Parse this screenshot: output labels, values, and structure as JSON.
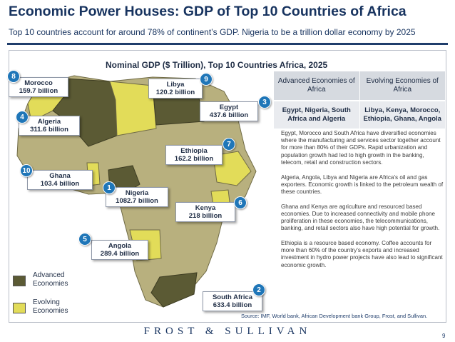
{
  "header": {
    "title": "Economic Power Houses: GDP of Top 10 Countries of Africa",
    "subtitle": "Top 10 countries account for around  78% of continent’s GDP. Nigeria to be a trillion dollar economy by 2025"
  },
  "map": {
    "heading": "Nominal GDP ($ Trillion), Top 10 Countries Africa, 2025",
    "countries": [
      {
        "rank": "8",
        "name": "Morocco",
        "value": "159.7 billion",
        "category": "evolving"
      },
      {
        "rank": "9",
        "name": "Libya",
        "value": "120.2 billion",
        "category": "evolving"
      },
      {
        "rank": "3",
        "name": "Egypt",
        "value": "437.6 billion",
        "category": "advanced"
      },
      {
        "rank": "4",
        "name": "Algeria",
        "value": "311.6 billion",
        "category": "advanced"
      },
      {
        "rank": "7",
        "name": "Ethiopia",
        "value": "162.2 billion",
        "category": "evolving"
      },
      {
        "rank": "10",
        "name": "Ghana",
        "value": "103.4 billion",
        "category": "evolving"
      },
      {
        "rank": "1",
        "name": "Nigeria",
        "value": "1082.7 billion",
        "category": "advanced"
      },
      {
        "rank": "6",
        "name": "Kenya",
        "value": "218  billion",
        "category": "evolving"
      },
      {
        "rank": "5",
        "name": "Angola",
        "value": "289.4 billion",
        "category": "evolving"
      },
      {
        "rank": "2",
        "name": "South Africa",
        "value": "633.4 billion",
        "category": "advanced"
      }
    ],
    "colors": {
      "advanced": "#5b5a34",
      "evolving": "#e2dc59",
      "land": "#b8b07e",
      "badge": "#1f76b8"
    }
  },
  "legend": {
    "advanced": "Advanced Economies",
    "evolving": "Evolving Economies"
  },
  "table": {
    "headers": [
      "Advanced Economies of Africa",
      "Evolving Economies of Africa"
    ],
    "row": [
      "Egypt, Nigeria, South Africa and Algeria",
      "Libya, Kenya, Morocco, Ethiopia, Ghana, Angola"
    ]
  },
  "notes": [
    "Egypt, Morocco and South Africa have diversified economies where the manufacturing and services sector together account for more than 80% of their GDPs. Rapid urbanization and population growth had led to high growth in the banking, telecom, retail and construction sectors.",
    "Algeria, Angola, Libya and Nigeria are Africa’s oil and gas exporters. Economic growth is linked to the petroleum wealth of these countries.",
    "Ghana and Kenya are agriculture and resourced based economies.  Due to increased connectivity and mobile phone proliferation in these economies, the telecommunications, banking, and retail sectors also have high potential for growth.",
    "Ethiopia is a resource based economy. Coffee accounts for more than 60% of the country’s exports and increased investment in hydro power projects have also lead to significant economic growth."
  ],
  "footer": {
    "source": "Source: IMF, World bank, African Development bank Group, Frost, and Sullivan.",
    "brand": "FROST & SULLIVAN",
    "page": "9"
  }
}
